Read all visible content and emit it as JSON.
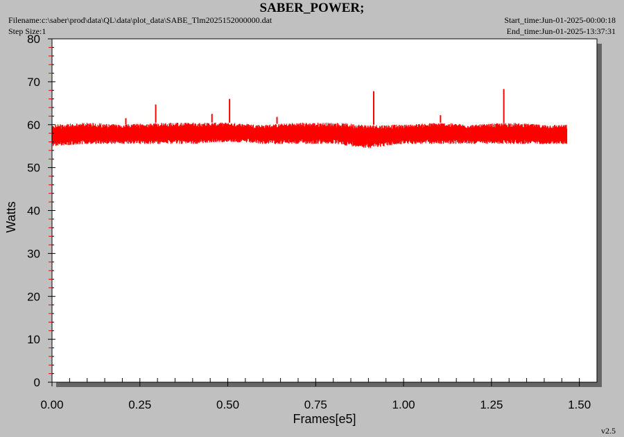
{
  "header": {
    "title": "SABER_POWER;",
    "filename": "Filename:c:\\saber\\prod\\data\\QL\\data\\plot_data\\SABE_Tlm2025152000000.dat",
    "step_size": "Step Size:1",
    "start_time": "Start_time:Jun-01-2025-00:00:18",
    "end_time": "End_time:Jun-01-2025-13:37:31"
  },
  "version": "v2.5",
  "chart_data": {
    "type": "line",
    "title": "SABER_POWER;",
    "xlabel": "Frames[e5]",
    "ylabel": "Watts",
    "xlim": [
      0,
      1.55
    ],
    "ylim": [
      0,
      80
    ],
    "x_ticks": [
      "0.00",
      "0.25",
      "0.50",
      "0.75",
      "1.00",
      "1.25",
      "1.50"
    ],
    "y_ticks": [
      "0",
      "10",
      "20",
      "30",
      "40",
      "50",
      "60",
      "70",
      "80"
    ],
    "grid": false,
    "series": [
      {
        "color": "#ff0000",
        "x_range": [
          0,
          1.465
        ],
        "band": [
          {
            "x": 0.0,
            "low": 55.0,
            "high": 60.0
          },
          {
            "x": 0.1,
            "low": 55.5,
            "high": 60.5
          },
          {
            "x": 0.2,
            "low": 55.5,
            "high": 60.0
          },
          {
            "x": 0.3,
            "low": 55.5,
            "high": 60.5
          },
          {
            "x": 0.4,
            "low": 55.5,
            "high": 60.5
          },
          {
            "x": 0.5,
            "low": 56.0,
            "high": 60.5
          },
          {
            "x": 0.6,
            "low": 55.5,
            "high": 60.0
          },
          {
            "x": 0.7,
            "low": 55.5,
            "high": 60.5
          },
          {
            "x": 0.8,
            "low": 55.5,
            "high": 60.5
          },
          {
            "x": 0.9,
            "low": 54.5,
            "high": 60.0
          },
          {
            "x": 1.0,
            "low": 55.5,
            "high": 60.0
          },
          {
            "x": 1.1,
            "low": 55.5,
            "high": 60.5
          },
          {
            "x": 1.2,
            "low": 55.5,
            "high": 60.0
          },
          {
            "x": 1.3,
            "low": 55.5,
            "high": 60.5
          },
          {
            "x": 1.4,
            "low": 55.5,
            "high": 60.0
          },
          {
            "x": 1.465,
            "low": 55.5,
            "high": 60.0
          }
        ],
        "spikes": [
          {
            "x": 0.295,
            "y": 64.7
          },
          {
            "x": 0.505,
            "y": 66.0
          },
          {
            "x": 0.915,
            "y": 67.8
          },
          {
            "x": 1.285,
            "y": 68.3
          },
          {
            "x": 0.455,
            "y": 62.5
          },
          {
            "x": 1.105,
            "y": 62.2
          },
          {
            "x": 0.21,
            "y": 61.5
          },
          {
            "x": 0.64,
            "y": 61.8
          }
        ]
      }
    ]
  }
}
